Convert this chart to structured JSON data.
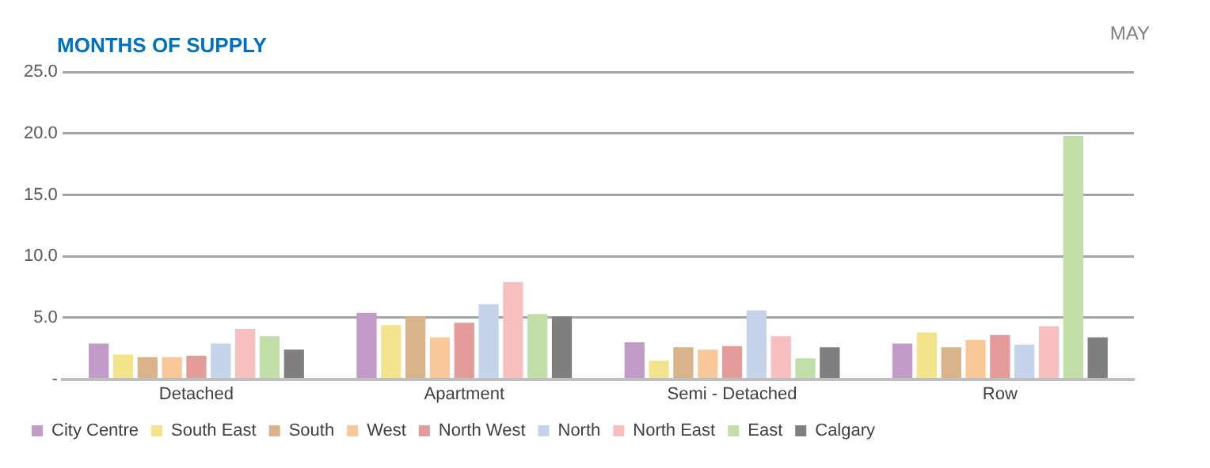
{
  "chart_data": {
    "type": "bar",
    "title": "MONTHS OF SUPPLY",
    "subtitle": "MAY",
    "categories": [
      "Detached",
      "Apartment",
      "Semi - Detached",
      "Row"
    ],
    "series": [
      {
        "name": "City Centre",
        "color": "#c39bc8",
        "values": [
          2.9,
          5.4,
          3.0,
          2.9
        ]
      },
      {
        "name": "South East",
        "color": "#f3e38c",
        "values": [
          2.0,
          4.4,
          1.5,
          3.8
        ]
      },
      {
        "name": "South",
        "color": "#d9b38a",
        "values": [
          1.8,
          5.1,
          2.6,
          2.6
        ]
      },
      {
        "name": "West",
        "color": "#f8c898",
        "values": [
          1.8,
          3.4,
          2.4,
          3.2
        ]
      },
      {
        "name": "North West",
        "color": "#e49c9a",
        "values": [
          1.9,
          4.6,
          2.7,
          3.6
        ]
      },
      {
        "name": "North",
        "color": "#c5d4ea",
        "values": [
          2.9,
          6.1,
          5.6,
          2.8
        ]
      },
      {
        "name": "North East",
        "color": "#f8bfc0",
        "values": [
          4.1,
          7.9,
          3.5,
          4.3
        ]
      },
      {
        "name": "East",
        "color": "#c2dea8",
        "values": [
          3.5,
          5.3,
          1.7,
          19.8
        ]
      },
      {
        "name": "Calgary",
        "color": "#7f7f7f",
        "values": [
          2.4,
          5.1,
          2.6,
          3.4
        ]
      }
    ],
    "ylim": [
      0,
      25
    ],
    "yticks": [
      {
        "value": 0,
        "label": "-"
      },
      {
        "value": 5,
        "label": "5.0"
      },
      {
        "value": 10,
        "label": "10.0"
      },
      {
        "value": 15,
        "label": "15.0"
      },
      {
        "value": 20,
        "label": "20.0"
      },
      {
        "value": 25,
        "label": "25.0"
      }
    ],
    "grid": "y",
    "legend": "bottom"
  }
}
